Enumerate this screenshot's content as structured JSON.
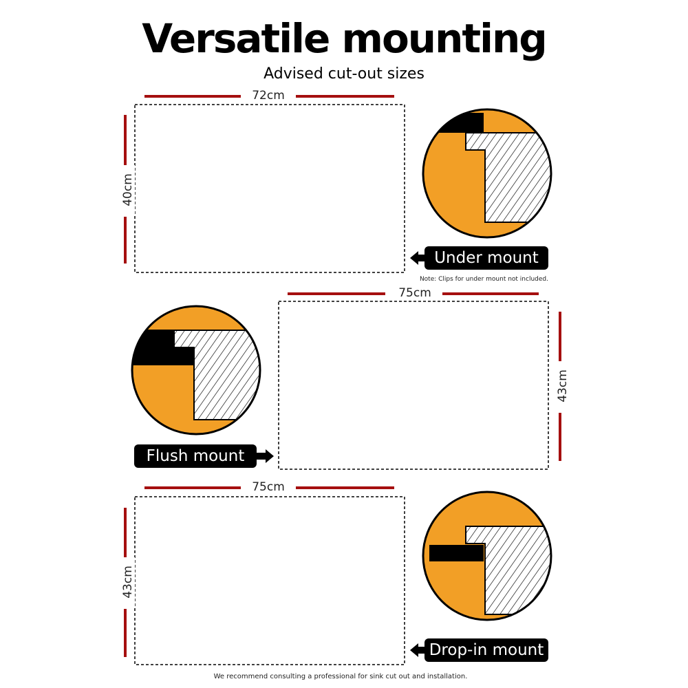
{
  "title": "Versatile mounting",
  "subtitle": "Advised cut-out sizes",
  "colors": {
    "accent_orange": "#F29F26",
    "dimension_red": "#A50F0F",
    "label_bg": "#000000"
  },
  "panels": [
    {
      "width_label": "72cm",
      "height_label": "40cm",
      "mount_label": "Under mount",
      "arrow": "arrow-left-icon"
    },
    {
      "width_label": "75cm",
      "height_label": "43cm",
      "mount_label": "Flush mount",
      "arrow": "arrow-right-icon"
    },
    {
      "width_label": "75cm",
      "height_label": "43cm",
      "mount_label": "Drop-in mount",
      "arrow": "arrow-left-icon"
    }
  ],
  "note": "Note: Clips for under mount not included.",
  "footer": "We recommend consulting a professional for sink cut out and installation."
}
